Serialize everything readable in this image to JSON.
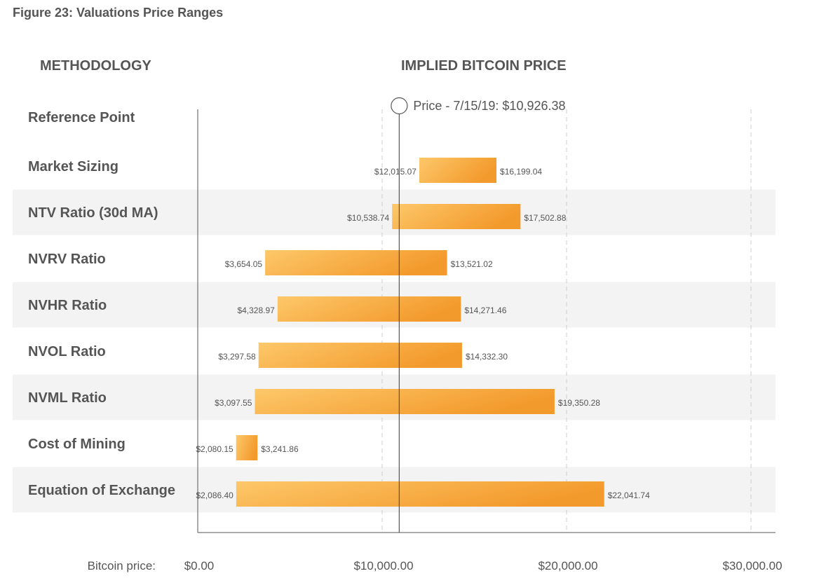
{
  "figure_title": "Figure 23: Valuations Price Ranges",
  "headers": {
    "methodology": "METHODOLOGY",
    "implied_price": "IMPLIED BITCOIN PRICE"
  },
  "colors": {
    "bar_light": "#fdc86a",
    "bar_dark": "#f39a2c",
    "band": "#f3f3f3",
    "axis": "#555555",
    "grid": "#cccccc"
  },
  "chart_data": {
    "type": "bar",
    "orientation": "horizontal-range",
    "title": "Figure 23: Valuations Price Ranges",
    "xlabel": "Bitcoin price:",
    "xlim": [
      0,
      31000
    ],
    "xticks": [
      0,
      10000,
      20000,
      30000
    ],
    "xtick_labels": [
      "$0.00",
      "$10,000.00",
      "$20,000.00",
      "$30,000.00"
    ],
    "grid": "vertical-dashed",
    "reference": {
      "row_label": "Reference Point",
      "label": "Price - 7/15/19: $10,926.38",
      "value": 10926.38
    },
    "categories": [
      "Market Sizing",
      "NTV Ratio (30d MA)",
      "NVRV Ratio",
      "NVHR Ratio",
      "NVOL Ratio",
      "NVML Ratio",
      "Cost of Mining",
      "Equation of Exchange"
    ],
    "ranges": [
      {
        "low": 12015.07,
        "high": 16199.04,
        "low_label": "$12,015.07",
        "high_label": "$16,199.04"
      },
      {
        "low": 10538.74,
        "high": 17502.88,
        "low_label": "$10,538.74",
        "high_label": "$17,502.88"
      },
      {
        "low": 3654.05,
        "high": 13521.02,
        "low_label": "$3,654.05",
        "high_label": "$13,521.02"
      },
      {
        "low": 4328.97,
        "high": 14271.46,
        "low_label": "$4,328.97",
        "high_label": "$14,271.46"
      },
      {
        "low": 3297.58,
        "high": 14332.3,
        "low_label": "$3,297.58",
        "high_label": "$14,332.30"
      },
      {
        "low": 3097.55,
        "high": 19350.28,
        "low_label": "$3,097.55",
        "high_label": "$19,350.28"
      },
      {
        "low": 2080.15,
        "high": 3241.86,
        "low_label": "$2,080.15",
        "high_label": "$3,241.86"
      },
      {
        "low": 2086.4,
        "high": 22041.74,
        "low_label": "$2,086.40",
        "high_label": "$22,041.74"
      }
    ],
    "shaded_rows": [
      1,
      3,
      5,
      7
    ]
  }
}
